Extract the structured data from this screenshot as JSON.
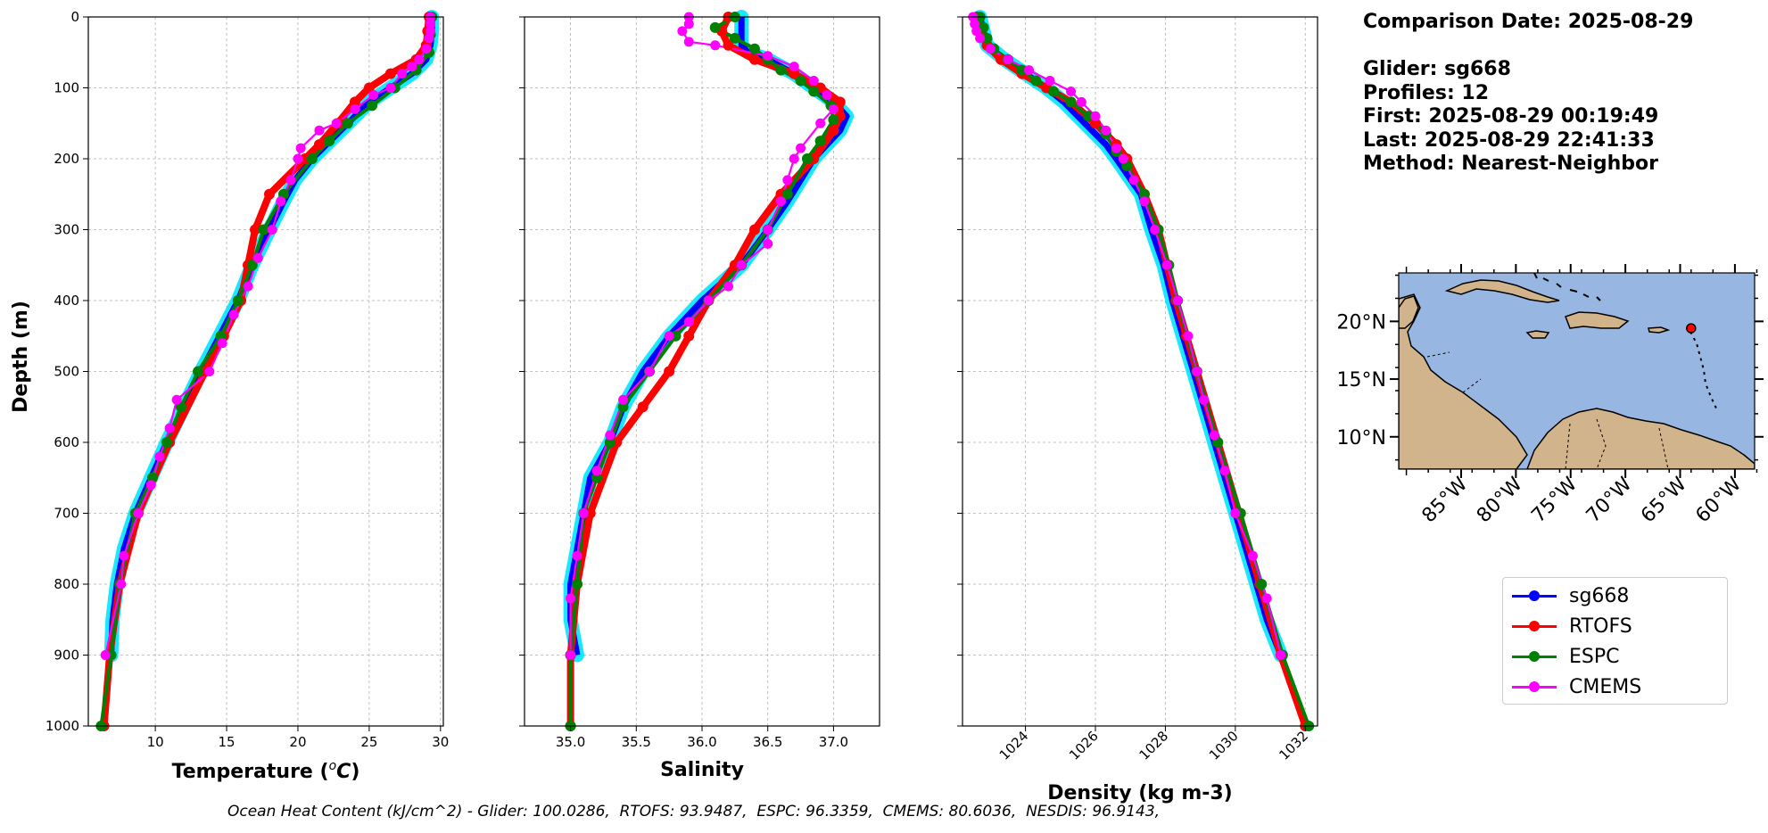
{
  "info": {
    "comparison_date": "Comparison Date: 2025-08-29",
    "glider": "Glider: sg668",
    "profiles": "Profiles: 12",
    "first": "First: 2025-08-29 00:19:49",
    "last": "Last: 2025-08-29 22:41:33",
    "method": "Method: Nearest-Neighbor"
  },
  "footer": "Ocean Heat Content (kJ/cm^2) - Glider: 100.0286,  RTOFS: 93.9487,  ESPC: 96.3359,  CMEMS: 80.6036,  NESDIS: 96.9143,",
  "legend": [
    {
      "name": "sg668",
      "color": "#0000ff"
    },
    {
      "name": "RTOFS",
      "color": "#ff0000"
    },
    {
      "name": "ESPC",
      "color": "#008000"
    },
    {
      "name": "CMEMS",
      "color": "#ff00ff"
    }
  ],
  "map": {
    "lat_labels": [
      "20°N",
      "15°N",
      "10°N"
    ],
    "lon_labels": [
      "85°W",
      "80°W",
      "75°W",
      "70°W",
      "65°W",
      "60°W"
    ],
    "ocean_color": "#97b6e1",
    "land_color": "#d2b48c",
    "glider_location": {
      "lon": -64.0,
      "lat": 19.4
    }
  },
  "chart_data": [
    {
      "type": "line",
      "name": "temperature",
      "xlabel": "Temperature (°C)",
      "ylabel": "Depth (m)",
      "xlim": [
        5.3,
        30.2
      ],
      "ylim": [
        1000,
        0
      ],
      "xticks": [
        10,
        15,
        20,
        25,
        30
      ],
      "yticks": [
        0,
        100,
        200,
        300,
        400,
        500,
        600,
        700,
        800,
        900,
        1000
      ],
      "grid": true,
      "series": [
        {
          "name": "sg668",
          "depth": [
            0,
            20,
            40,
            60,
            80,
            100,
            120,
            150,
            180,
            200,
            230,
            260,
            300,
            350,
            400,
            450,
            500,
            550,
            600,
            650,
            700,
            750,
            800,
            850,
            900
          ],
          "values": [
            29.4,
            29.4,
            29.3,
            29.0,
            28.0,
            26.5,
            25.0,
            23.5,
            22.0,
            21.0,
            19.8,
            19.0,
            18.0,
            16.8,
            15.8,
            14.5,
            13.2,
            12.0,
            10.8,
            9.7,
            8.6,
            7.8,
            7.3,
            7.0,
            6.9
          ]
        },
        {
          "name": "RTOFS",
          "depth": [
            0,
            20,
            40,
            60,
            80,
            100,
            120,
            150,
            180,
            200,
            250,
            300,
            350,
            400,
            450,
            500,
            600,
            700,
            800,
            900,
            1000
          ],
          "values": [
            29.2,
            29.1,
            29.0,
            28.3,
            26.5,
            25.0,
            24.0,
            22.8,
            21.5,
            20.5,
            18.0,
            17.0,
            16.5,
            16.0,
            14.8,
            13.5,
            11.0,
            8.8,
            7.5,
            6.8,
            6.4
          ]
        },
        {
          "name": "ESPC",
          "depth": [
            0,
            25,
            50,
            75,
            100,
            125,
            150,
            175,
            200,
            250,
            300,
            350,
            400,
            450,
            500,
            550,
            600,
            650,
            700,
            800,
            900,
            1000
          ],
          "values": [
            29.4,
            29.3,
            29.2,
            28.3,
            26.8,
            25.2,
            23.5,
            22.2,
            21.0,
            19.0,
            17.6,
            16.8,
            15.8,
            14.6,
            13.0,
            11.8,
            10.8,
            9.8,
            8.6,
            7.5,
            6.9,
            6.2
          ]
        },
        {
          "name": "CMEMS",
          "depth": [
            0,
            10,
            20,
            30,
            45,
            60,
            70,
            80,
            100,
            110,
            130,
            150,
            160,
            185,
            200,
            230,
            260,
            300,
            340,
            380,
            420,
            460,
            500,
            540,
            580,
            620,
            660,
            700,
            760,
            800,
            900
          ],
          "values": [
            29.3,
            29.3,
            29.3,
            29.2,
            29.0,
            28.5,
            28.0,
            27.3,
            26.5,
            25.3,
            24.0,
            22.7,
            21.5,
            20.2,
            20.0,
            19.5,
            18.8,
            18.2,
            17.2,
            16.5,
            15.5,
            14.7,
            13.8,
            11.5,
            11.0,
            10.3,
            9.7,
            8.8,
            7.8,
            7.6,
            6.5
          ]
        }
      ]
    },
    {
      "type": "line",
      "name": "salinity",
      "xlabel": "Salinity",
      "xlim": [
        34.65,
        37.35
      ],
      "ylim": [
        1000,
        0
      ],
      "xticks": [
        35.0,
        35.5,
        36.0,
        36.5,
        37.0
      ],
      "grid": true,
      "series": [
        {
          "name": "sg668",
          "depth": [
            0,
            20,
            40,
            50,
            60,
            80,
            100,
            120,
            140,
            160,
            180,
            200,
            230,
            260,
            300,
            350,
            400,
            450,
            500,
            550,
            600,
            650,
            700,
            750,
            800,
            850,
            900
          ],
          "values": [
            36.3,
            36.3,
            36.3,
            36.35,
            36.5,
            36.7,
            36.85,
            37.0,
            37.1,
            37.05,
            36.95,
            36.85,
            36.75,
            36.65,
            36.5,
            36.3,
            36.0,
            35.75,
            35.55,
            35.4,
            35.3,
            35.15,
            35.1,
            35.05,
            35.0,
            35.0,
            35.05
          ]
        },
        {
          "name": "RTOFS",
          "depth": [
            0,
            20,
            40,
            60,
            80,
            100,
            120,
            140,
            160,
            200,
            250,
            300,
            350,
            400,
            450,
            500,
            550,
            600,
            700,
            800,
            900,
            1000
          ],
          "values": [
            36.2,
            36.15,
            36.2,
            36.4,
            36.7,
            36.9,
            37.05,
            37.05,
            37.0,
            36.85,
            36.6,
            36.4,
            36.25,
            36.05,
            35.9,
            35.75,
            35.55,
            35.35,
            35.15,
            35.05,
            35.0,
            35.0
          ]
        },
        {
          "name": "ESPC",
          "depth": [
            0,
            15,
            30,
            45,
            60,
            75,
            90,
            105,
            125,
            145,
            175,
            200,
            250,
            300,
            350,
            400,
            450,
            500,
            550,
            600,
            650,
            700,
            800,
            900,
            1000
          ],
          "values": [
            36.25,
            36.1,
            36.25,
            36.4,
            36.5,
            36.6,
            36.75,
            36.85,
            36.98,
            37.0,
            36.9,
            36.8,
            36.65,
            36.5,
            36.3,
            36.05,
            35.8,
            35.6,
            35.4,
            35.3,
            35.2,
            35.1,
            35.05,
            35.0,
            35.0
          ]
        },
        {
          "name": "CMEMS",
          "depth": [
            0,
            10,
            20,
            35,
            40,
            55,
            70,
            90,
            110,
            130,
            150,
            185,
            200,
            230,
            260,
            300,
            320,
            350,
            380,
            400,
            430,
            450,
            500,
            540,
            590,
            640,
            700,
            760,
            820,
            900
          ],
          "values": [
            35.9,
            35.9,
            35.85,
            35.9,
            36.1,
            36.5,
            36.7,
            36.85,
            36.95,
            37.0,
            36.9,
            36.75,
            36.7,
            36.65,
            36.6,
            36.5,
            36.5,
            36.3,
            36.2,
            36.05,
            35.9,
            35.75,
            35.6,
            35.4,
            35.3,
            35.2,
            35.1,
            35.05,
            35.0,
            35.0
          ]
        }
      ]
    },
    {
      "type": "line",
      "name": "density",
      "xlabel": "Density (kg m-3)",
      "xlim": [
        1022.2,
        1032.35
      ],
      "ylim": [
        1000,
        0
      ],
      "xticks": [
        1024,
        1026,
        1028,
        1030,
        1032
      ],
      "grid": true,
      "series": [
        {
          "name": "sg668",
          "depth": [
            0,
            20,
            40,
            60,
            80,
            100,
            120,
            150,
            180,
            200,
            250,
            300,
            350,
            400,
            450,
            500,
            550,
            600,
            650,
            700,
            750,
            800,
            850,
            900
          ],
          "values": [
            1022.7,
            1022.8,
            1022.9,
            1023.4,
            1024.0,
            1024.6,
            1025.1,
            1025.7,
            1026.3,
            1026.6,
            1027.3,
            1027.6,
            1027.95,
            1028.2,
            1028.5,
            1028.8,
            1029.1,
            1029.4,
            1029.7,
            1030.0,
            1030.3,
            1030.6,
            1030.9,
            1031.3
          ]
        },
        {
          "name": "RTOFS",
          "depth": [
            0,
            20,
            40,
            60,
            80,
            100,
            120,
            150,
            180,
            200,
            250,
            300,
            350,
            400,
            450,
            500,
            600,
            700,
            800,
            900,
            1000
          ],
          "values": [
            1022.6,
            1022.7,
            1022.9,
            1023.3,
            1023.9,
            1024.6,
            1025.3,
            1026.0,
            1026.6,
            1026.9,
            1027.4,
            1027.8,
            1028.05,
            1028.3,
            1028.6,
            1028.9,
            1029.5,
            1030.1,
            1030.7,
            1031.3,
            1032.0
          ]
        },
        {
          "name": "ESPC",
          "depth": [
            0,
            15,
            30,
            45,
            60,
            75,
            90,
            105,
            120,
            140,
            165,
            190,
            210,
            250,
            300,
            350,
            400,
            500,
            600,
            700,
            800,
            900,
            1000
          ],
          "values": [
            1022.7,
            1022.8,
            1022.9,
            1023.1,
            1023.5,
            1023.9,
            1024.3,
            1024.8,
            1025.3,
            1025.8,
            1026.3,
            1026.6,
            1026.9,
            1027.4,
            1027.8,
            1028.1,
            1028.35,
            1028.9,
            1029.5,
            1030.15,
            1030.75,
            1031.35,
            1032.1
          ]
        },
        {
          "name": "CMEMS",
          "depth": [
            0,
            10,
            20,
            30,
            45,
            60,
            75,
            90,
            105,
            120,
            140,
            160,
            185,
            200,
            230,
            260,
            300,
            350,
            400,
            450,
            500,
            540,
            590,
            640,
            700,
            760,
            820,
            900
          ],
          "values": [
            1022.5,
            1022.55,
            1022.6,
            1022.7,
            1023.0,
            1023.5,
            1024.1,
            1024.7,
            1025.3,
            1025.6,
            1026.0,
            1026.3,
            1026.6,
            1026.8,
            1027.1,
            1027.4,
            1027.7,
            1028.05,
            1028.35,
            1028.65,
            1028.9,
            1029.1,
            1029.4,
            1029.7,
            1030.0,
            1030.5,
            1030.9,
            1031.3
          ]
        }
      ]
    }
  ]
}
